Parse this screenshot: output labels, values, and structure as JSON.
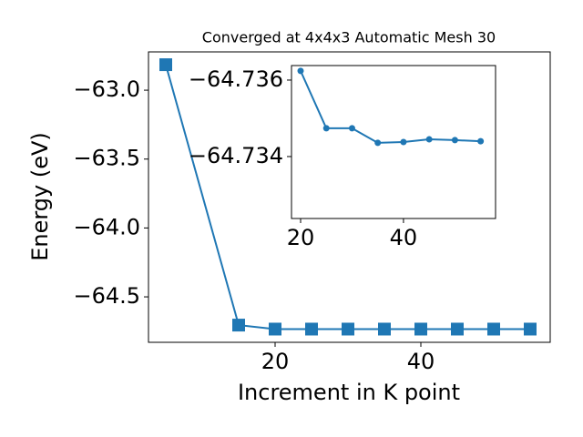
{
  "chart_data": [
    {
      "type": "line",
      "title": "Converged at 4x4x3 Automatic Mesh 30",
      "xlabel": "Increment in K point",
      "ylabel": "Energy (eV)",
      "marker": "square",
      "color": "#1f77b4",
      "x": [
        5,
        15,
        20,
        25,
        30,
        35,
        40,
        45,
        50,
        55
      ],
      "values": [
        -62.815,
        -64.705,
        -64.734,
        -64.734,
        -64.734,
        -64.734,
        -64.734,
        -64.734,
        -64.734,
        -64.734
      ],
      "xlim": [
        2.625,
        57.75
      ],
      "xticks": [
        20,
        40
      ],
      "ylim": [
        -64.83,
        -62.722
      ],
      "yticks": [
        {
          "value": -63.0,
          "label": "−63.0"
        },
        {
          "value": -63.5,
          "label": "−63.5"
        },
        {
          "value": -64.0,
          "label": "−64.0"
        },
        {
          "value": -64.5,
          "label": "−64.5"
        }
      ]
    },
    {
      "type": "line",
      "marker": "circle",
      "color": "#1f77b4",
      "x": [
        20,
        25,
        30,
        35,
        40,
        45,
        50,
        55
      ],
      "values": [
        -64.73624,
        -64.73474,
        -64.73474,
        -64.73436,
        -64.73438,
        -64.73445,
        -64.73443,
        -64.7344
      ],
      "xlim": [
        18.23,
        57.9
      ],
      "xticks": [
        20,
        40
      ],
      "ylim": [
        -64.73238,
        -64.73638
      ],
      "yticks": [
        {
          "value": -64.736,
          "label": "−64.736"
        },
        {
          "value": -64.734,
          "label": "−64.734"
        }
      ]
    }
  ]
}
